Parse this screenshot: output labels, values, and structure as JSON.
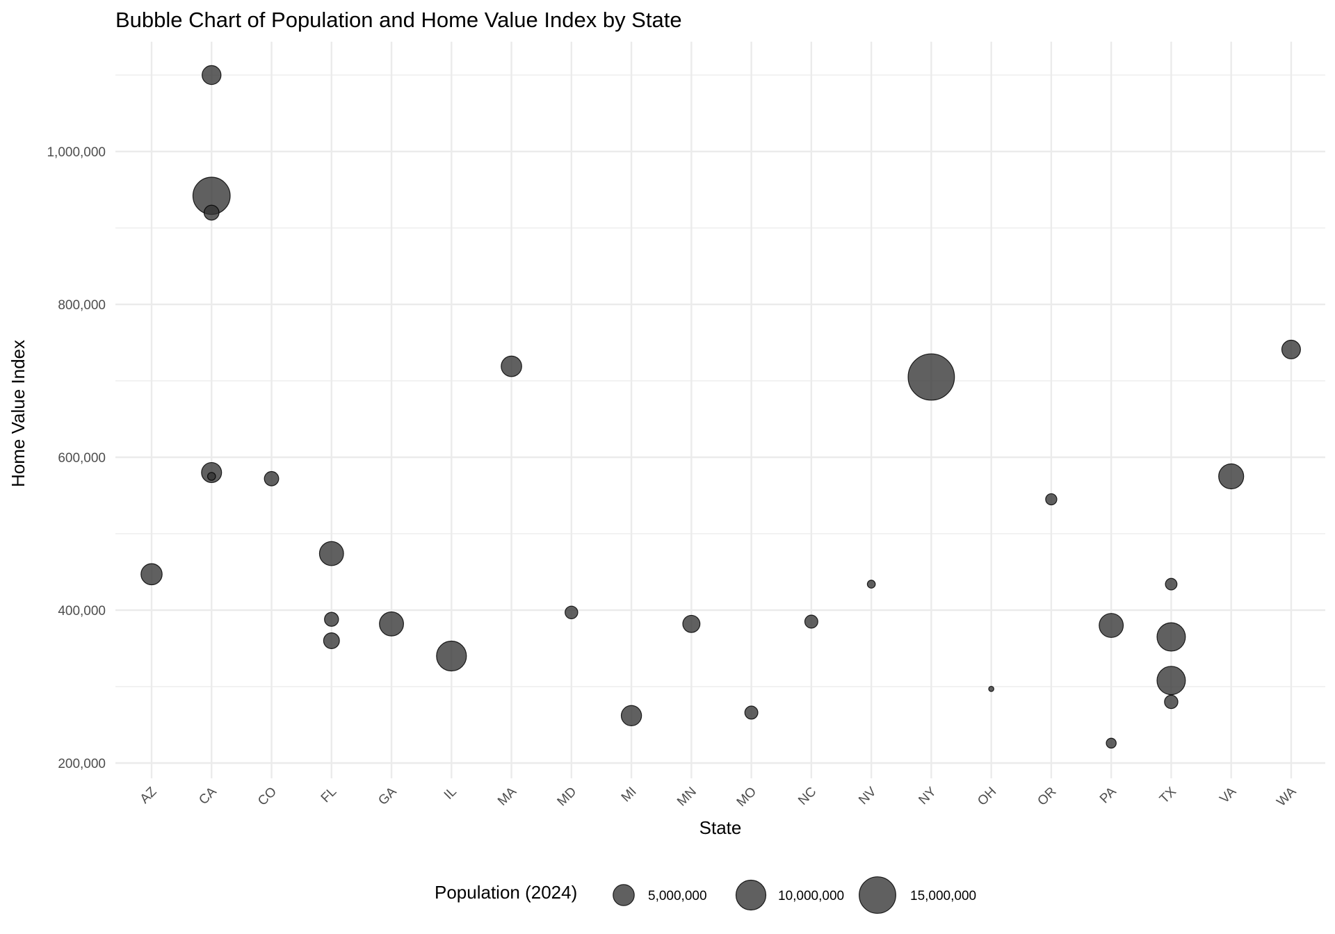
{
  "chart_data": {
    "type": "scatter",
    "title": "Bubble Chart of Population and Home Value Index by State",
    "xlabel": "State",
    "ylabel": "Home Value Index",
    "categories": [
      "AZ",
      "CA",
      "CO",
      "FL",
      "GA",
      "IL",
      "MA",
      "MD",
      "MI",
      "MN",
      "MO",
      "NC",
      "NV",
      "NY",
      "OH",
      "OR",
      "PA",
      "TX",
      "VA",
      "WA"
    ],
    "ylim": [
      180000,
      1140000
    ],
    "y_ticks": [
      200000,
      400000,
      600000,
      800000,
      1000000
    ],
    "y_tick_labels": [
      "200,000",
      "400,000",
      "600,000",
      "800,000",
      "1,000,000"
    ],
    "grid": true,
    "size_variable": "Population (2024)",
    "points": [
      {
        "x": "AZ",
        "y": 447000,
        "size": 5000000
      },
      {
        "x": "CA",
        "y": 1100000,
        "size": 4000000
      },
      {
        "x": "CA",
        "y": 942000,
        "size": 15500000
      },
      {
        "x": "CA",
        "y": 920000,
        "size": 2500000
      },
      {
        "x": "CA",
        "y": 580000,
        "size": 4500000
      },
      {
        "x": "CA",
        "y": 575000,
        "size": 700000
      },
      {
        "x": "CO",
        "y": 572000,
        "size": 2300000
      },
      {
        "x": "FL",
        "y": 474000,
        "size": 6500000
      },
      {
        "x": "FL",
        "y": 388000,
        "size": 2200000
      },
      {
        "x": "FL",
        "y": 360000,
        "size": 2800000
      },
      {
        "x": "GA",
        "y": 382000,
        "size": 6500000
      },
      {
        "x": "IL",
        "y": 340000,
        "size": 10000000
      },
      {
        "x": "MA",
        "y": 719000,
        "size": 4700000
      },
      {
        "x": "MD",
        "y": 397000,
        "size": 1800000
      },
      {
        "x": "MI",
        "y": 262000,
        "size": 4600000
      },
      {
        "x": "MN",
        "y": 382000,
        "size": 3300000
      },
      {
        "x": "MO",
        "y": 266000,
        "size": 1900000
      },
      {
        "x": "NC",
        "y": 385000,
        "size": 1900000
      },
      {
        "x": "NV",
        "y": 434000,
        "size": 700000
      },
      {
        "x": "NY",
        "y": 705000,
        "size": 24000000
      },
      {
        "x": "OH",
        "y": 297000,
        "size": 300000
      },
      {
        "x": "OR",
        "y": 545000,
        "size": 1400000
      },
      {
        "x": "PA",
        "y": 380000,
        "size": 6500000
      },
      {
        "x": "PA",
        "y": 226000,
        "size": 1100000
      },
      {
        "x": "TX",
        "y": 434000,
        "size": 1500000
      },
      {
        "x": "TX",
        "y": 365000,
        "size": 9000000
      },
      {
        "x": "TX",
        "y": 308000,
        "size": 9000000
      },
      {
        "x": "TX",
        "y": 280000,
        "size": 2000000
      },
      {
        "x": "VA",
        "y": 575000,
        "size": 7000000
      },
      {
        "x": "WA",
        "y": 741000,
        "size": 3900000
      }
    ],
    "legend": {
      "title": "Population (2024)",
      "position": "bottom",
      "entries": [
        {
          "label": "5,000,000",
          "value": 5000000
        },
        {
          "label": "10,000,000",
          "value": 10000000
        },
        {
          "label": "15,000,000",
          "value": 15000000
        }
      ]
    }
  }
}
